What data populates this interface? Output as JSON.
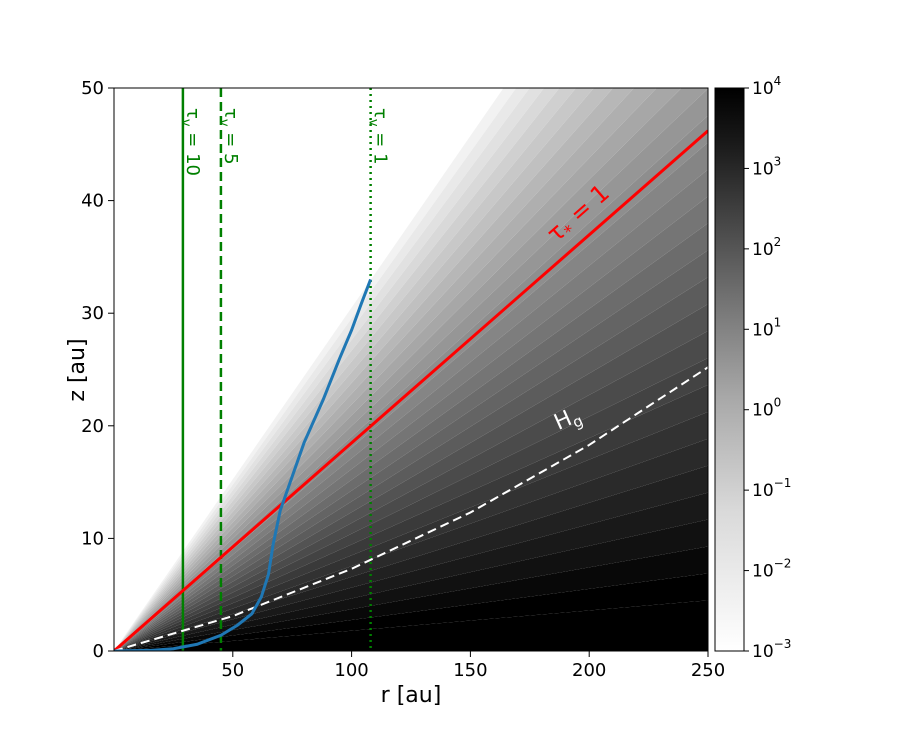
{
  "chart_data": {
    "type": "heatmap",
    "xlabel": "r [au]",
    "ylabel": "z [au]",
    "xlim": [
      0,
      250
    ],
    "ylim": [
      0,
      50
    ],
    "xticks": [
      50,
      100,
      150,
      200,
      250
    ],
    "yticks": [
      0,
      10,
      20,
      30,
      40,
      50
    ],
    "grid": false,
    "colormap": "greys",
    "colorbar": {
      "scale": "log",
      "range": [
        0.001,
        10000
      ],
      "ticks": [
        {
          "base": "10",
          "exp": "4",
          "value": 10000
        },
        {
          "base": "10",
          "exp": "3",
          "value": 1000
        },
        {
          "base": "10",
          "exp": "2",
          "value": 100
        },
        {
          "base": "10",
          "exp": "1",
          "value": 10
        },
        {
          "base": "10",
          "exp": "0",
          "value": 1
        },
        {
          "base": "10",
          "exp": "−1",
          "value": 0.1
        },
        {
          "base": "10",
          "exp": "−2",
          "value": 0.01
        },
        {
          "base": "10",
          "exp": "−3",
          "value": 0.001
        }
      ]
    },
    "vertical_lines": [
      {
        "x": 29,
        "label": "τ",
        "sub": "v",
        "rest": " = 10",
        "style": "solid",
        "color": "#008000"
      },
      {
        "x": 45,
        "label": "τ",
        "sub": "v",
        "rest": " = 5",
        "style": "dashed",
        "color": "#008000"
      },
      {
        "x": 108,
        "label": "τ",
        "sub": "v",
        "rest": " = 1",
        "style": "dotted",
        "color": "#008000"
      }
    ],
    "series": [
      {
        "label": "τ",
        "sub": "*",
        "rest": " = 1",
        "color": "#ff0000",
        "style": "solid",
        "x": [
          0,
          250
        ],
        "y": [
          0,
          46.2
        ]
      },
      {
        "label": "H",
        "sub": "g",
        "color": "#ffffff",
        "style": "dashed",
        "x": [
          0,
          50,
          100,
          150,
          200,
          250
        ],
        "y": [
          0,
          3.1,
          7.3,
          12.3,
          18.3,
          25.2
        ]
      },
      {
        "color": "#1f77b4",
        "style": "solid",
        "x": [
          0,
          15,
          25,
          35,
          45,
          52,
          58,
          62,
          65,
          67,
          70,
          75,
          80,
          88,
          95,
          100,
          104,
          108
        ],
        "y": [
          0,
          0.05,
          0.2,
          0.6,
          1.4,
          2.3,
          3.3,
          4.8,
          6.8,
          9.5,
          12.5,
          15.5,
          18.5,
          22.3,
          26,
          28.5,
          30.8,
          33
        ]
      }
    ]
  }
}
